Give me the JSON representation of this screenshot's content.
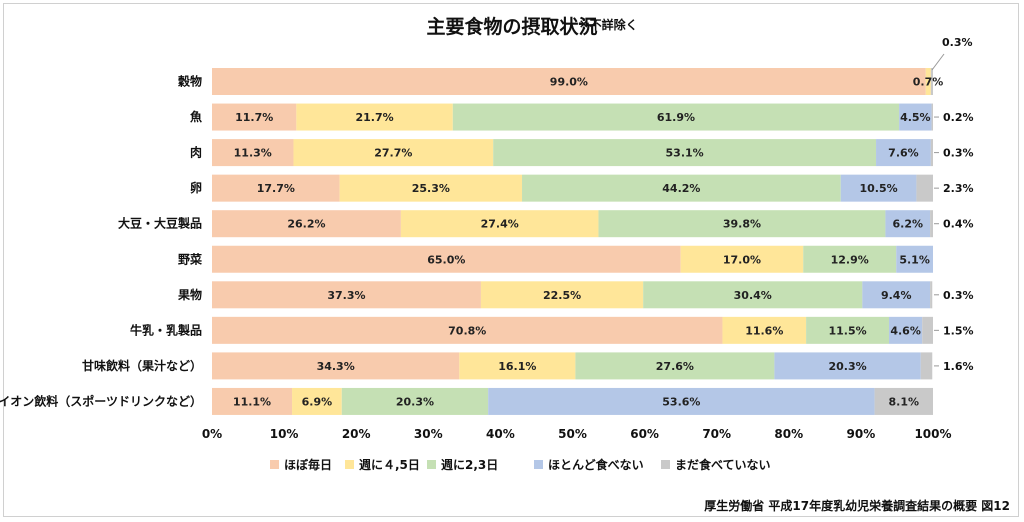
{
  "header": {
    "title": "主要食物の摂取状況",
    "note": "※不詳除く"
  },
  "footer": {
    "source": "厚生労働省 平成17年度乳幼児栄養調査結果の概要 図12"
  },
  "chart_data": {
    "type": "bar",
    "orientation": "horizontal",
    "stacked": true,
    "percent": true,
    "title": "主要食物の摂取状況",
    "categories": [
      "穀物",
      "魚",
      "肉",
      "卵",
      "大豆・大豆製品",
      "野菜",
      "果物",
      "牛乳・乳製品",
      "甘味飲料（果汁など）",
      "イオン飲料（スポーツドリンクなど）"
    ],
    "series": [
      {
        "name": "ほぼ毎日",
        "color": "#f8cbad",
        "values": [
          99.0,
          11.7,
          11.3,
          17.7,
          26.2,
          65.0,
          37.3,
          70.8,
          34.3,
          11.1
        ]
      },
      {
        "name": "週に４,5日",
        "color": "#ffe699",
        "values": [
          0.7,
          21.7,
          27.7,
          25.3,
          27.4,
          17.0,
          22.5,
          11.6,
          16.1,
          6.9
        ]
      },
      {
        "name": "週に2,3日",
        "color": "#c5e0b4",
        "values": [
          0,
          61.9,
          53.1,
          44.2,
          39.8,
          12.9,
          30.4,
          11.5,
          27.6,
          20.3
        ]
      },
      {
        "name": "ほとんど食べない",
        "color": "#b4c7e7",
        "values": [
          0,
          4.5,
          7.6,
          10.5,
          6.2,
          5.1,
          9.4,
          4.6,
          20.3,
          53.6
        ]
      },
      {
        "name": "まだ食べていない",
        "color": "#c9c9c9",
        "values": [
          0.3,
          0.2,
          0.3,
          2.3,
          0.4,
          0,
          0.3,
          1.5,
          1.6,
          8.1
        ]
      }
    ],
    "inside_labels": [
      [
        "99.0%",
        "0.7%",
        "",
        "",
        ""
      ],
      [
        "11.7%",
        "21.7%",
        "61.9%",
        "4.5%",
        ""
      ],
      [
        "11.3%",
        "27.7%",
        "53.1%",
        "7.6%",
        ""
      ],
      [
        "17.7%",
        "25.3%",
        "44.2%",
        "10.5%",
        ""
      ],
      [
        "26.2%",
        "27.4%",
        "39.8%",
        "6.2%",
        ""
      ],
      [
        "65.0%",
        "17.0%",
        "12.9%",
        "5.1%",
        ""
      ],
      [
        "37.3%",
        "22.5%",
        "30.4%",
        "9.4%",
        ""
      ],
      [
        "70.8%",
        "11.6%",
        "11.5%",
        "4.6%",
        ""
      ],
      [
        "34.3%",
        "16.1%",
        "27.6%",
        "20.3%",
        ""
      ],
      [
        "11.1%",
        "6.9%",
        "20.3%",
        "53.6%",
        "8.1%"
      ]
    ],
    "outside_labels": [
      "0.3%",
      "0.2%",
      "0.3%",
      "2.3%",
      "0.4%",
      "",
      "0.3%",
      "1.5%",
      "1.6%",
      ""
    ],
    "xlim": [
      0,
      100
    ],
    "xticks": [
      "0%",
      "10%",
      "20%",
      "30%",
      "40%",
      "50%",
      "60%",
      "70%",
      "80%",
      "90%",
      "100%"
    ],
    "legend_position": "bottom",
    "grid": false
  }
}
